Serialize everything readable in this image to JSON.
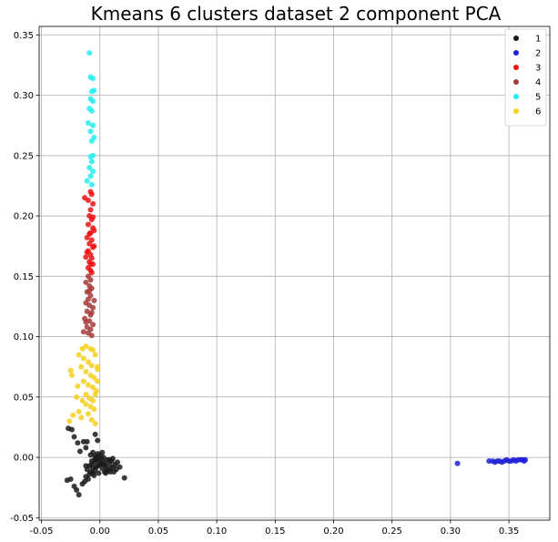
{
  "chart_data": {
    "type": "scatter",
    "title": "Kmeans 6 clusters dataset 2 component PCA",
    "xlabel": "",
    "ylabel": "",
    "xlim": [
      -0.052,
      0.385
    ],
    "ylim": [
      -0.052,
      0.357
    ],
    "grid": true,
    "legend_position": "top-right",
    "x_ticks": [
      -0.05,
      0.0,
      0.05,
      0.1,
      0.15,
      0.2,
      0.25,
      0.3,
      0.35
    ],
    "x_tick_labels": [
      "-0.05",
      "0.00",
      "0.05",
      "0.10",
      "0.15",
      "0.20",
      "0.25",
      "0.30",
      "0.35"
    ],
    "y_ticks": [
      -0.05,
      0.0,
      0.05,
      0.1,
      0.15,
      0.2,
      0.25,
      0.3,
      0.35
    ],
    "y_tick_labels": [
      "-0.05",
      "0.00",
      "0.05",
      "0.10",
      "0.15",
      "0.20",
      "0.25",
      "0.30",
      "0.35"
    ],
    "series": [
      {
        "name": "1",
        "color": "#1a1a1a",
        "points": [
          [
            -0.027,
            0.024
          ],
          [
            -0.024,
            0.023
          ],
          [
            -0.022,
            0.017
          ],
          [
            -0.019,
            0.012
          ],
          [
            -0.014,
            0.013
          ],
          [
            -0.011,
            0.013
          ],
          [
            -0.002,
            0.014
          ],
          [
            -0.004,
            0.019
          ],
          [
            -0.012,
            0.008
          ],
          [
            -0.017,
            0.005
          ],
          [
            -0.025,
            -0.018
          ],
          [
            -0.028,
            -0.019
          ],
          [
            -0.022,
            -0.024
          ],
          [
            -0.02,
            -0.027
          ],
          [
            -0.018,
            -0.031
          ],
          [
            -0.015,
            -0.022
          ],
          [
            -0.013,
            -0.02
          ],
          [
            -0.012,
            -0.016
          ],
          [
            -0.01,
            -0.018
          ],
          [
            -0.009,
            -0.014
          ],
          [
            -0.011,
            -0.01
          ],
          [
            -0.008,
            -0.012
          ],
          [
            -0.007,
            -0.006
          ],
          [
            -0.006,
            -0.009
          ],
          [
            -0.005,
            -0.004
          ],
          [
            -0.004,
            -0.011
          ],
          [
            -0.003,
            -0.002
          ],
          [
            -0.002,
            -0.007
          ],
          [
            -0.001,
            -0.003
          ],
          [
            0.0,
            -0.006
          ],
          [
            0.001,
            -0.001
          ],
          [
            0.002,
            -0.009
          ],
          [
            0.003,
            -0.004
          ],
          [
            0.004,
            -0.012
          ],
          [
            0.005,
            -0.007
          ],
          [
            0.006,
            -0.002
          ],
          [
            0.007,
            -0.011
          ],
          [
            0.008,
            -0.005
          ],
          [
            0.009,
            -0.009
          ],
          [
            0.01,
            -0.003
          ],
          [
            0.011,
            -0.008
          ],
          [
            0.012,
            -0.012
          ],
          [
            0.013,
            -0.006
          ],
          [
            0.014,
            -0.01
          ],
          [
            0.015,
            -0.004
          ],
          [
            0.017,
            -0.008
          ],
          [
            0.021,
            -0.017
          ],
          [
            -0.006,
            0.004
          ],
          [
            -0.004,
            0.001
          ],
          [
            -0.002,
            0.003
          ],
          [
            0.0,
            0.002
          ],
          [
            0.002,
            0.004
          ],
          [
            -0.008,
            0.002
          ],
          [
            -0.001,
            -0.013
          ],
          [
            -0.005,
            -0.015
          ],
          [
            -0.007,
            -0.003
          ],
          [
            0.004,
            -0.006
          ],
          [
            0.006,
            -0.01
          ],
          [
            -0.003,
            -0.008
          ],
          [
            0.001,
            -0.005
          ],
          [
            -0.009,
            -0.007
          ],
          [
            -0.006,
            -0.013
          ],
          [
            0.008,
            -0.002
          ],
          [
            0.011,
            -0.001
          ],
          [
            0.003,
            0.0
          ],
          [
            -0.002,
            0.0
          ],
          [
            -0.004,
            -0.001
          ],
          [
            0.005,
            -0.013
          ],
          [
            0.009,
            -0.012
          ],
          [
            -0.012,
            -0.007
          ]
        ]
      },
      {
        "name": "2",
        "color": "#1f1fd6",
        "points": [
          [
            0.306,
            -0.005
          ],
          [
            0.333,
            -0.003
          ],
          [
            0.336,
            -0.003
          ],
          [
            0.338,
            -0.004
          ],
          [
            0.34,
            -0.003
          ],
          [
            0.342,
            -0.003
          ],
          [
            0.344,
            -0.004
          ],
          [
            0.346,
            -0.003
          ],
          [
            0.348,
            -0.002
          ],
          [
            0.35,
            -0.003
          ],
          [
            0.352,
            -0.003
          ],
          [
            0.354,
            -0.002
          ],
          [
            0.356,
            -0.003
          ],
          [
            0.358,
            -0.002
          ],
          [
            0.36,
            -0.002
          ],
          [
            0.362,
            -0.002
          ],
          [
            0.363,
            -0.003
          ],
          [
            0.364,
            -0.002
          ]
        ]
      },
      {
        "name": "3",
        "color": "#ee1111",
        "points": [
          [
            -0.013,
            0.215
          ],
          [
            -0.01,
            0.213
          ],
          [
            -0.008,
            0.22
          ],
          [
            -0.007,
            0.218
          ],
          [
            -0.006,
            0.21
          ],
          [
            -0.008,
            0.205
          ],
          [
            -0.009,
            0.2
          ],
          [
            -0.007,
            0.197
          ],
          [
            -0.01,
            0.193
          ],
          [
            -0.006,
            0.19
          ],
          [
            -0.008,
            0.186
          ],
          [
            -0.011,
            0.182
          ],
          [
            -0.007,
            0.18
          ],
          [
            -0.009,
            0.177
          ],
          [
            -0.006,
            0.174
          ],
          [
            -0.01,
            0.171
          ],
          [
            -0.008,
            0.168
          ],
          [
            -0.007,
            0.165
          ],
          [
            -0.009,
            0.162
          ],
          [
            -0.006,
            0.16
          ],
          [
            -0.01,
            0.157
          ],
          [
            -0.008,
            0.155
          ],
          [
            -0.007,
            0.153
          ],
          [
            -0.009,
            0.185
          ],
          [
            -0.011,
            0.17
          ],
          [
            -0.005,
            0.175
          ],
          [
            -0.006,
            0.199
          ],
          [
            -0.005,
            0.188
          ],
          [
            -0.012,
            0.166
          ],
          [
            -0.008,
            0.16
          ]
        ]
      },
      {
        "name": "4",
        "color": "#a63a3a",
        "points": [
          [
            -0.01,
            0.15
          ],
          [
            -0.008,
            0.147
          ],
          [
            -0.012,
            0.145
          ],
          [
            -0.009,
            0.142
          ],
          [
            -0.007,
            0.14
          ],
          [
            -0.011,
            0.137
          ],
          [
            -0.008,
            0.134
          ],
          [
            -0.01,
            0.131
          ],
          [
            -0.012,
            0.128
          ],
          [
            -0.009,
            0.126
          ],
          [
            -0.006,
            0.124
          ],
          [
            -0.011,
            0.121
          ],
          [
            -0.008,
            0.118
          ],
          [
            -0.013,
            0.115
          ],
          [
            -0.009,
            0.113
          ],
          [
            -0.006,
            0.11
          ],
          [
            -0.011,
            0.108
          ],
          [
            -0.008,
            0.106
          ],
          [
            -0.014,
            0.104
          ],
          [
            -0.01,
            0.103
          ],
          [
            -0.007,
            0.101
          ],
          [
            -0.012,
            0.112
          ],
          [
            -0.005,
            0.13
          ],
          [
            -0.009,
            0.138
          ],
          [
            -0.007,
            0.12
          ]
        ]
      },
      {
        "name": "5",
        "color": "#22eeee",
        "points": [
          [
            -0.009,
            0.335
          ],
          [
            -0.008,
            0.315
          ],
          [
            -0.006,
            0.314
          ],
          [
            -0.007,
            0.303
          ],
          [
            -0.005,
            0.304
          ],
          [
            -0.008,
            0.297
          ],
          [
            -0.006,
            0.295
          ],
          [
            -0.009,
            0.289
          ],
          [
            -0.007,
            0.287
          ],
          [
            -0.01,
            0.277
          ],
          [
            -0.006,
            0.275
          ],
          [
            -0.008,
            0.27
          ],
          [
            -0.005,
            0.265
          ],
          [
            -0.007,
            0.262
          ],
          [
            -0.006,
            0.25
          ],
          [
            -0.008,
            0.249
          ],
          [
            -0.007,
            0.245
          ],
          [
            -0.009,
            0.24
          ],
          [
            -0.006,
            0.237
          ],
          [
            -0.008,
            0.233
          ],
          [
            -0.011,
            0.229
          ],
          [
            -0.007,
            0.226
          ]
        ]
      },
      {
        "name": "6",
        "color": "#f5d020",
        "points": [
          [
            -0.015,
            0.09
          ],
          [
            -0.012,
            0.092
          ],
          [
            -0.008,
            0.09
          ],
          [
            -0.004,
            0.085
          ],
          [
            -0.006,
            0.089
          ],
          [
            -0.018,
            0.085
          ],
          [
            -0.014,
            0.082
          ],
          [
            -0.01,
            0.079
          ],
          [
            -0.007,
            0.076
          ],
          [
            -0.002,
            0.073
          ],
          [
            -0.016,
            0.075
          ],
          [
            -0.012,
            0.071
          ],
          [
            -0.008,
            0.068
          ],
          [
            -0.005,
            0.066
          ],
          [
            -0.025,
            0.072
          ],
          [
            -0.024,
            0.068
          ],
          [
            -0.014,
            0.063
          ],
          [
            -0.01,
            0.06
          ],
          [
            -0.006,
            0.058
          ],
          [
            -0.003,
            0.055
          ],
          [
            -0.012,
            0.052
          ],
          [
            -0.009,
            0.049
          ],
          [
            -0.006,
            0.047
          ],
          [
            -0.004,
            0.052
          ],
          [
            -0.02,
            0.05
          ],
          [
            -0.015,
            0.047
          ],
          [
            -0.012,
            0.044
          ],
          [
            -0.008,
            0.042
          ],
          [
            -0.005,
            0.04
          ],
          [
            -0.002,
            0.063
          ],
          [
            -0.023,
            0.035
          ],
          [
            -0.026,
            0.03
          ],
          [
            -0.018,
            0.038
          ],
          [
            -0.016,
            0.033
          ],
          [
            -0.01,
            0.036
          ],
          [
            -0.007,
            0.031
          ],
          [
            -0.004,
            0.028
          ],
          [
            -0.002,
            0.075
          ],
          [
            -0.019,
            0.059
          ]
        ]
      }
    ]
  }
}
